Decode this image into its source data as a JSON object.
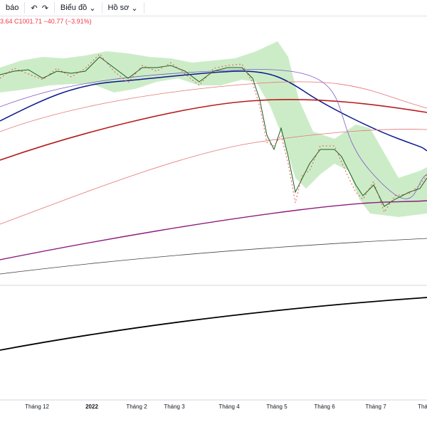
{
  "toolbar": {
    "items": [
      "báo",
      "Biểu đồ",
      "Hồ sơ"
    ]
  },
  "legend": {
    "ohlc": "3.64  C1001.71  −40.77 (−3.91%)"
  },
  "x_axis": {
    "labels": [
      "Tháng 12",
      "2022",
      "Tháng 2",
      "Tháng 3",
      "Tháng 4",
      "Tháng 5",
      "Tháng 6",
      "Tháng 7",
      "Thá"
    ]
  }
}
